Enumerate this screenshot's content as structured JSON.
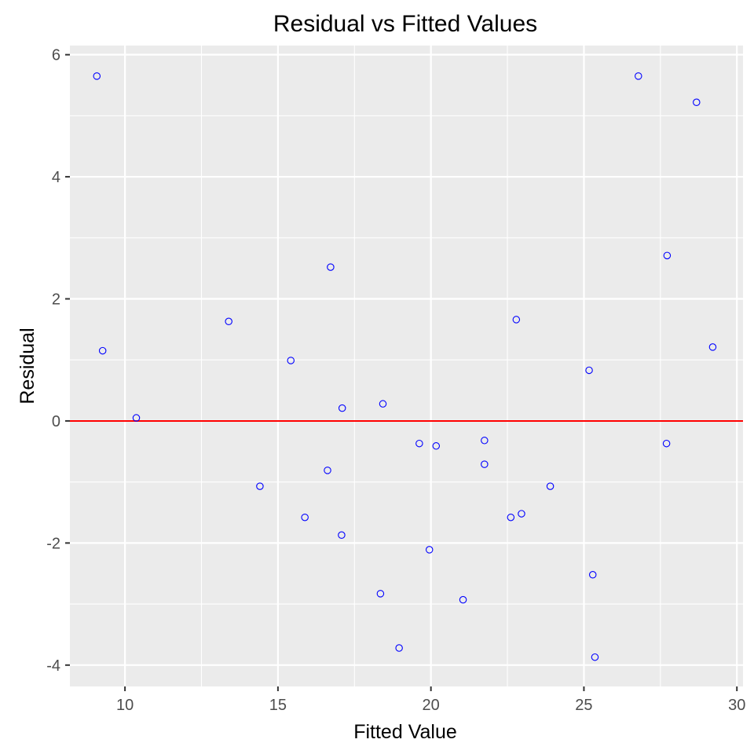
{
  "chart_data": {
    "type": "scatter",
    "title": "Residual vs Fitted Values",
    "xlabel": "Fitted Value",
    "ylabel": "Residual",
    "xlim": [
      8.2,
      30.2
    ],
    "ylim": [
      -4.35,
      6.15
    ],
    "x_ticks": [
      10,
      15,
      20,
      25,
      30
    ],
    "y_ticks": [
      -4,
      -2,
      0,
      2,
      4,
      6
    ],
    "x_tick_labels": [
      "10",
      "15",
      "20",
      "25",
      "30"
    ],
    "y_tick_labels": [
      "-4",
      "-2",
      "0",
      "2",
      "4",
      "6"
    ],
    "grid": true,
    "panel_background": "#ebebeb",
    "grid_color": "#ffffff",
    "point_color": "#0000ff",
    "reference_line": {
      "y": 0,
      "color": "#ff0000"
    },
    "points": [
      {
        "x": 9.08,
        "y": 5.65
      },
      {
        "x": 9.27,
        "y": 1.15
      },
      {
        "x": 10.37,
        "y": 0.05
      },
      {
        "x": 13.39,
        "y": 1.63
      },
      {
        "x": 14.41,
        "y": -1.07
      },
      {
        "x": 15.42,
        "y": 0.99
      },
      {
        "x": 15.88,
        "y": -1.58
      },
      {
        "x": 16.62,
        "y": -0.81
      },
      {
        "x": 16.72,
        "y": 2.52
      },
      {
        "x": 17.08,
        "y": -1.87
      },
      {
        "x": 17.1,
        "y": 0.21
      },
      {
        "x": 18.35,
        "y": -2.83
      },
      {
        "x": 18.43,
        "y": 0.28
      },
      {
        "x": 18.96,
        "y": -3.72
      },
      {
        "x": 19.62,
        "y": -0.37
      },
      {
        "x": 19.95,
        "y": -2.11
      },
      {
        "x": 20.17,
        "y": -0.41
      },
      {
        "x": 21.05,
        "y": -2.93
      },
      {
        "x": 21.75,
        "y": -0.32
      },
      {
        "x": 21.75,
        "y": -0.71
      },
      {
        "x": 22.61,
        "y": -1.58
      },
      {
        "x": 22.79,
        "y": 1.66
      },
      {
        "x": 22.96,
        "y": -1.52
      },
      {
        "x": 23.9,
        "y": -1.07
      },
      {
        "x": 25.17,
        "y": 0.83
      },
      {
        "x": 25.29,
        "y": -2.52
      },
      {
        "x": 25.36,
        "y": -3.87
      },
      {
        "x": 26.78,
        "y": 5.65
      },
      {
        "x": 27.7,
        "y": -0.37
      },
      {
        "x": 27.72,
        "y": 2.71
      },
      {
        "x": 28.68,
        "y": 5.22
      },
      {
        "x": 29.21,
        "y": 1.21
      }
    ]
  }
}
